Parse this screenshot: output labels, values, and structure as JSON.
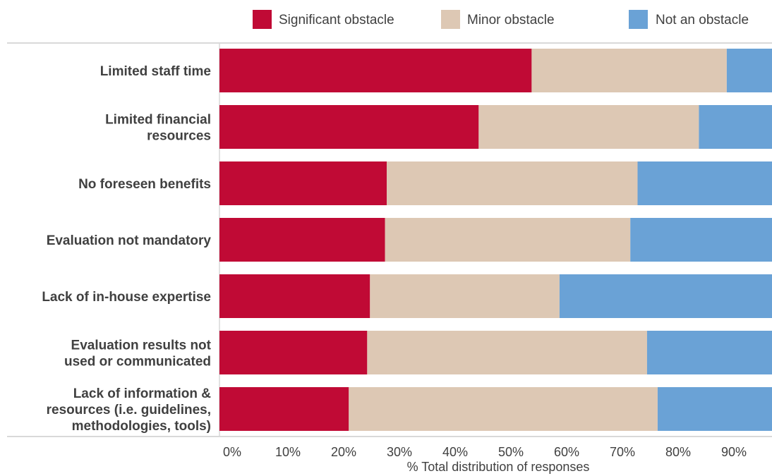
{
  "chart_data": {
    "type": "bar",
    "orientation": "horizontal",
    "stacked": true,
    "categories": [
      [
        "Limited staff time"
      ],
      [
        "Limited financial",
        "resources"
      ],
      [
        "No foreseen benefits"
      ],
      [
        "Evaluation not mandatory"
      ],
      [
        "Lack of in-house expertise"
      ],
      [
        "Evaluation results not",
        "used or communicated"
      ],
      [
        "Lack of information &",
        "resources (i.e. guidelines,",
        "methodologies, tools)"
      ]
    ],
    "series": [
      {
        "name": "Significant obstacle",
        "color": "#c00a35",
        "values": [
          56,
          46.5,
          30,
          29.7,
          27,
          26.5,
          23.2
        ]
      },
      {
        "name": "Minor obstacle",
        "color": "#ddc8b4",
        "values": [
          35,
          39.5,
          45,
          44,
          34,
          50.2,
          55.4
        ]
      },
      {
        "name": "Not an obstacle",
        "color": "#6aa2d6",
        "values": [
          9,
          14,
          25,
          26.3,
          39,
          23.3,
          21.4
        ]
      }
    ],
    "xlabel": "% Total distribution of responses",
    "xlim": [
      0,
      100
    ],
    "xticks": [
      "0%",
      "10%",
      "20%",
      "30%",
      "40%",
      "50%",
      "60%",
      "70%",
      "80%",
      "90%"
    ],
    "legend_position": "top",
    "grid": false
  }
}
